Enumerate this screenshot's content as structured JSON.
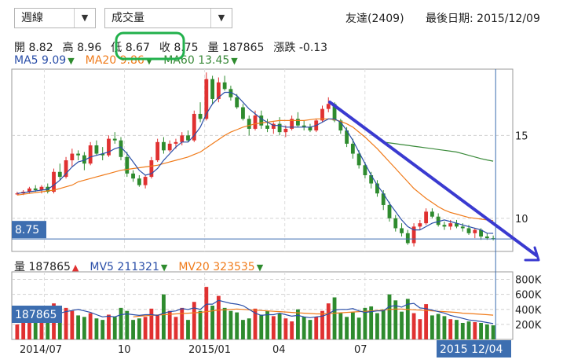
{
  "controls": {
    "period_label": "週線",
    "indicator_label": "成交量",
    "arrow_glyph": "▼"
  },
  "header": {
    "stock": "友達(2409)",
    "last_date_label": "最後日期:",
    "last_date": "2015/12/09"
  },
  "ohlc": {
    "open_label": "開",
    "open": "8.82",
    "high_label": "高",
    "high": "8.96",
    "low_label": "低",
    "low": "8.67",
    "close_label": "收",
    "close": "8.75",
    "volume_label": "量",
    "volume": "187865",
    "change_label": "漲跌",
    "change": "-0.13"
  },
  "ma": {
    "ma5_label": "MA5",
    "ma5": "9.09",
    "ma20_label": "MA20",
    "ma20": "9.86",
    "ma60_label": "MA60",
    "ma60": "13.45",
    "trend_glyph": "▼"
  },
  "vol_info": {
    "vol_label": "量",
    "vol": "187865",
    "vol_glyph": "▲",
    "mv5_label": "MV5",
    "mv5": "211321",
    "mv5_glyph": "▼",
    "mv20_label": "MV20",
    "mv20": "323535",
    "mv20_glyph": "▼"
  },
  "colors": {
    "up": "#e03131",
    "down": "#2e8b2e",
    "ma5": "#2a4ea8",
    "ma20": "#f07b1a",
    "ma60": "#3a8a3a",
    "price_box": "#3d6eb0",
    "annotation_green": "#22b14c",
    "annotation_blue": "#3a3ad0"
  },
  "chart_data": {
    "type": "candlestick",
    "price_axis": {
      "ticks": [
        "15",
        "10"
      ],
      "ylim": [
        8,
        19
      ],
      "current_price_label": "8.75"
    },
    "volume_axis": {
      "ticks": [
        "800K",
        "600K",
        "400K",
        "200K"
      ],
      "ylim": [
        0,
        900000
      ],
      "current_volume_label": "187865"
    },
    "x_labels": [
      "2014/07",
      "10",
      "2015/01",
      "04",
      "07",
      "2015 12/04"
    ],
    "candles": [
      [
        11.5,
        11.6,
        11.4,
        11.5
      ],
      [
        11.5,
        11.7,
        11.4,
        11.6
      ],
      [
        11.6,
        11.9,
        11.5,
        11.8
      ],
      [
        11.8,
        12.0,
        11.6,
        11.7
      ],
      [
        11.7,
        12.0,
        11.5,
        11.9
      ],
      [
        11.9,
        12.1,
        11.5,
        11.6
      ],
      [
        11.6,
        13.0,
        11.5,
        12.8
      ],
      [
        12.8,
        13.3,
        12.3,
        12.5
      ],
      [
        12.5,
        13.7,
        12.4,
        13.5
      ],
      [
        13.5,
        14.2,
        13.1,
        13.9
      ],
      [
        13.9,
        14.1,
        13.5,
        13.8
      ],
      [
        13.8,
        14.0,
        12.9,
        13.3
      ],
      [
        13.3,
        14.6,
        13.2,
        14.4
      ],
      [
        14.4,
        14.7,
        13.8,
        13.9
      ],
      [
        13.9,
        14.3,
        13.5,
        13.8
      ],
      [
        13.8,
        15.0,
        13.7,
        14.8
      ],
      [
        14.8,
        15.2,
        14.5,
        14.7
      ],
      [
        14.7,
        14.9,
        13.5,
        13.7
      ],
      [
        13.7,
        14.0,
        12.5,
        12.7
      ],
      [
        12.7,
        12.9,
        12.2,
        12.4
      ],
      [
        12.4,
        12.6,
        11.9,
        12.0
      ],
      [
        12.0,
        12.6,
        11.8,
        12.5
      ],
      [
        12.5,
        13.7,
        12.4,
        13.5
      ],
      [
        13.5,
        14.8,
        13.4,
        14.6
      ],
      [
        14.6,
        14.9,
        13.9,
        14.1
      ],
      [
        14.1,
        14.7,
        14.0,
        14.5
      ],
      [
        14.5,
        14.8,
        14.2,
        14.6
      ],
      [
        14.6,
        15.2,
        14.4,
        15.0
      ],
      [
        15.0,
        15.3,
        14.6,
        14.7
      ],
      [
        14.7,
        16.5,
        14.6,
        16.3
      ],
      [
        16.3,
        17.0,
        15.8,
        16.0
      ],
      [
        16.0,
        18.8,
        15.9,
        18.4
      ],
      [
        18.4,
        18.6,
        16.9,
        17.2
      ],
      [
        17.2,
        18.5,
        17.0,
        18.2
      ],
      [
        18.2,
        18.6,
        17.7,
        17.8
      ],
      [
        17.8,
        18.0,
        17.1,
        17.3
      ],
      [
        17.3,
        17.5,
        16.6,
        16.7
      ],
      [
        16.7,
        16.9,
        15.9,
        16.0
      ],
      [
        16.0,
        16.2,
        15.0,
        15.4
      ],
      [
        15.4,
        16.5,
        15.3,
        16.2
      ],
      [
        16.2,
        16.5,
        15.4,
        15.6
      ],
      [
        15.6,
        16.0,
        15.2,
        15.4
      ],
      [
        15.4,
        15.8,
        15.1,
        15.7
      ],
      [
        15.7,
        16.1,
        15.0,
        15.2
      ],
      [
        15.2,
        15.6,
        14.9,
        15.4
      ],
      [
        15.4,
        16.2,
        15.3,
        16.0
      ],
      [
        16.0,
        16.4,
        15.5,
        15.6
      ],
      [
        15.6,
        15.9,
        15.3,
        15.5
      ],
      [
        15.5,
        15.7,
        15.2,
        15.3
      ],
      [
        15.3,
        16.0,
        15.2,
        15.9
      ],
      [
        15.9,
        16.8,
        15.8,
        16.6
      ],
      [
        16.6,
        17.3,
        16.4,
        16.9
      ],
      [
        16.9,
        17.0,
        15.8,
        15.9
      ],
      [
        15.9,
        16.0,
        15.1,
        15.3
      ],
      [
        15.3,
        15.5,
        14.3,
        14.5
      ],
      [
        14.5,
        14.8,
        13.6,
        13.9
      ],
      [
        13.9,
        14.1,
        13.0,
        13.2
      ],
      [
        13.2,
        13.4,
        12.4,
        12.6
      ],
      [
        12.6,
        12.8,
        11.8,
        12.1
      ],
      [
        12.1,
        12.3,
        11.3,
        11.5
      ],
      [
        11.5,
        11.7,
        10.5,
        10.8
      ],
      [
        10.8,
        11.0,
        9.8,
        10.0
      ],
      [
        10.0,
        10.2,
        9.2,
        9.4
      ],
      [
        9.4,
        9.7,
        8.9,
        9.1
      ],
      [
        9.1,
        9.3,
        8.4,
        8.5
      ],
      [
        8.5,
        9.7,
        8.3,
        9.5
      ],
      [
        9.5,
        9.9,
        9.3,
        9.7
      ],
      [
        9.7,
        10.6,
        9.6,
        10.4
      ],
      [
        10.4,
        10.6,
        10.0,
        10.1
      ],
      [
        10.1,
        10.3,
        9.5,
        9.6
      ],
      [
        9.6,
        9.8,
        9.3,
        9.5
      ],
      [
        9.5,
        9.9,
        9.3,
        9.7
      ],
      [
        9.7,
        9.9,
        9.4,
        9.5
      ],
      [
        9.5,
        9.7,
        9.2,
        9.4
      ],
      [
        9.4,
        9.6,
        9.0,
        9.1
      ],
      [
        9.1,
        9.4,
        8.8,
        9.3
      ],
      [
        9.3,
        9.4,
        8.7,
        8.9
      ],
      [
        8.9,
        9.1,
        8.7,
        8.8
      ],
      [
        8.8,
        8.96,
        8.67,
        8.75
      ]
    ],
    "ma5": [
      11.5,
      11.55,
      11.6,
      11.65,
      11.7,
      11.75,
      12.0,
      12.3,
      12.7,
      13.1,
      13.4,
      13.5,
      13.7,
      13.8,
      13.9,
      14.0,
      14.2,
      14.3,
      13.9,
      13.4,
      12.9,
      12.6,
      12.7,
      13.0,
      13.5,
      13.9,
      14.3,
      14.6,
      14.6,
      15.0,
      15.5,
      16.3,
      16.9,
      17.3,
      17.6,
      17.6,
      17.4,
      17.0,
      16.6,
      16.3,
      16.0,
      15.8,
      15.6,
      15.6,
      15.5,
      15.5,
      15.5,
      15.5,
      15.5,
      15.6,
      15.8,
      16.0,
      16.0,
      15.8,
      15.3,
      14.7,
      14.0,
      13.3,
      12.6,
      12.0,
      11.5,
      10.9,
      10.4,
      9.9,
      9.5,
      9.3,
      9.3,
      9.5,
      9.7,
      9.8,
      9.9,
      9.8,
      9.7,
      9.6,
      9.5,
      9.4,
      9.3,
      9.1,
      9.09
    ],
    "ma20": [
      11.4,
      11.45,
      11.5,
      11.55,
      11.6,
      11.65,
      11.7,
      11.8,
      11.9,
      12.0,
      12.2,
      12.3,
      12.4,
      12.5,
      12.6,
      12.7,
      12.8,
      12.9,
      12.95,
      13.0,
      13.05,
      13.1,
      13.15,
      13.2,
      13.3,
      13.4,
      13.5,
      13.6,
      13.7,
      13.85,
      14.0,
      14.25,
      14.5,
      14.75,
      15.0,
      15.2,
      15.35,
      15.5,
      15.6,
      15.7,
      15.75,
      15.8,
      15.85,
      15.9,
      15.9,
      15.9,
      15.9,
      15.9,
      15.95,
      16.0,
      16.0,
      16.0,
      15.95,
      15.85,
      15.7,
      15.5,
      15.2,
      14.9,
      14.55,
      14.2,
      13.8,
      13.4,
      13.0,
      12.6,
      12.2,
      11.8,
      11.5,
      11.2,
      10.95,
      10.7,
      10.5,
      10.35,
      10.25,
      10.15,
      10.05,
      10.0,
      9.95,
      9.9,
      9.86
    ],
    "ma60": [
      null,
      null,
      null,
      null,
      null,
      null,
      null,
      null,
      null,
      null,
      null,
      null,
      null,
      null,
      null,
      null,
      null,
      null,
      null,
      null,
      null,
      null,
      null,
      null,
      null,
      null,
      null,
      null,
      null,
      null,
      null,
      null,
      null,
      null,
      null,
      null,
      null,
      null,
      null,
      null,
      null,
      null,
      null,
      null,
      null,
      null,
      null,
      null,
      null,
      null,
      null,
      null,
      null,
      null,
      null,
      null,
      null,
      null,
      null,
      null,
      14.6,
      14.55,
      14.5,
      14.45,
      14.4,
      14.35,
      14.3,
      14.25,
      14.2,
      14.15,
      14.1,
      14.05,
      14.0,
      13.9,
      13.8,
      13.7,
      13.6,
      13.52,
      13.45
    ],
    "volumes": [
      200000,
      240000,
      250000,
      270000,
      260000,
      300000,
      480000,
      400000,
      420000,
      380000,
      320000,
      300000,
      350000,
      280000,
      260000,
      330000,
      300000,
      420000,
      380000,
      260000,
      280000,
      300000,
      410000,
      330000,
      600000,
      380000,
      300000,
      420000,
      260000,
      500000,
      380000,
      700000,
      450000,
      580000,
      420000,
      380000,
      360000,
      260000,
      280000,
      410000,
      330000,
      380000,
      310000,
      350000,
      280000,
      240000,
      400000,
      300000,
      260000,
      300000,
      380000,
      480000,
      560000,
      350000,
      300000,
      360000,
      290000,
      420000,
      440000,
      350000,
      400000,
      600000,
      520000,
      370000,
      540000,
      350000,
      270000,
      470000,
      320000,
      340000,
      310000,
      270000,
      260000,
      220000,
      240000,
      230000,
      220000,
      200000,
      187865
    ],
    "mv5": [
      230000,
      240000,
      245000,
      250000,
      260000,
      275000,
      320000,
      350000,
      370000,
      385000,
      400000,
      380000,
      360000,
      330000,
      300000,
      310000,
      300000,
      330000,
      340000,
      330000,
      320000,
      330000,
      330000,
      320000,
      350000,
      370000,
      380000,
      410000,
      400000,
      420000,
      400000,
      470000,
      470000,
      520000,
      500000,
      480000,
      470000,
      450000,
      400000,
      350000,
      320000,
      330000,
      330000,
      350000,
      330000,
      310000,
      320000,
      300000,
      290000,
      300000,
      310000,
      340000,
      390000,
      400000,
      400000,
      410000,
      380000,
      360000,
      370000,
      380000,
      380000,
      440000,
      450000,
      430000,
      470000,
      480000,
      420000,
      410000,
      390000,
      370000,
      350000,
      320000,
      300000,
      280000,
      260000,
      250000,
      240000,
      225000,
      211321
    ],
    "mv20": [
      null,
      null,
      null,
      null,
      null,
      null,
      null,
      null,
      null,
      null,
      null,
      null,
      null,
      null,
      null,
      null,
      null,
      null,
      null,
      300000,
      310000,
      315000,
      320000,
      325000,
      330000,
      335000,
      340000,
      345000,
      350000,
      355000,
      360000,
      370000,
      380000,
      390000,
      395000,
      400000,
      405000,
      400000,
      395000,
      390000,
      385000,
      380000,
      375000,
      370000,
      365000,
      360000,
      355000,
      350000,
      345000,
      340000,
      340000,
      345000,
      350000,
      355000,
      360000,
      365000,
      370000,
      375000,
      380000,
      385000,
      390000,
      400000,
      405000,
      405000,
      400000,
      395000,
      390000,
      385000,
      380000,
      375000,
      370000,
      365000,
      360000,
      350000,
      345000,
      340000,
      335000,
      330000,
      323535
    ]
  }
}
